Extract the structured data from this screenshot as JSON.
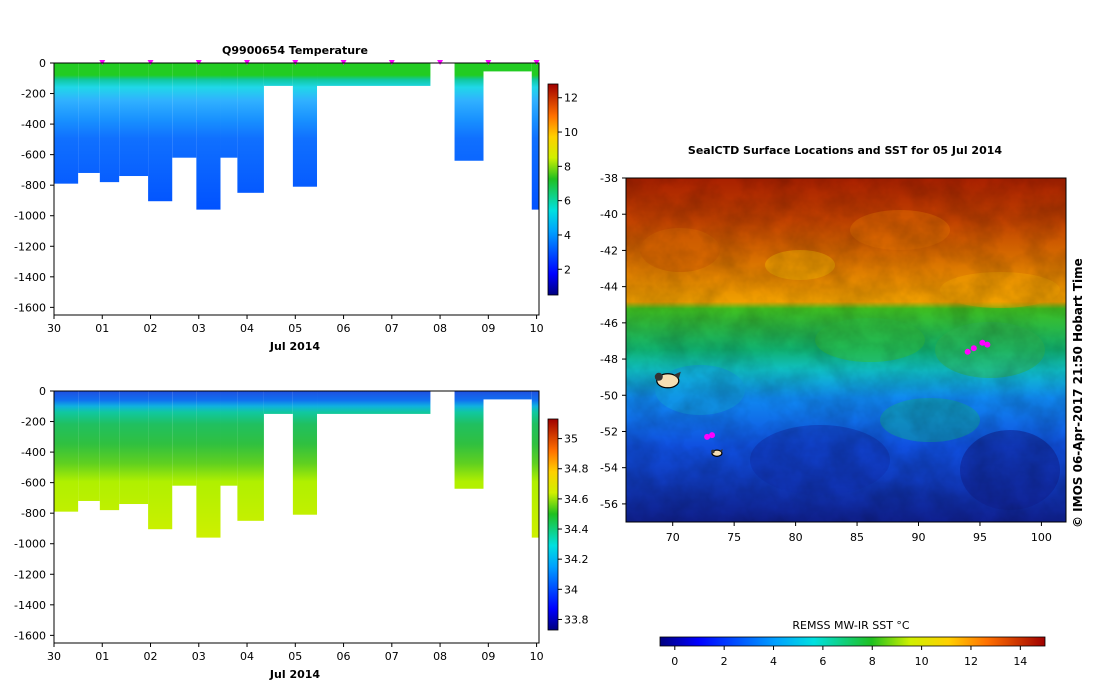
{
  "chart_data": [
    {
      "type": "heatmap",
      "title": "Q9900654  Temperature",
      "xlabel": "Jul 2014",
      "ylabel": "",
      "x_ticks": [
        "30",
        "01",
        "02",
        "03",
        "04",
        "05",
        "06",
        "07",
        "08",
        "09",
        "10"
      ],
      "y_ticks": [
        0,
        -200,
        -400,
        -600,
        -800,
        -1000,
        -1200,
        -1400,
        -1600
      ],
      "ylim": [
        -1650,
        0
      ],
      "colorbar": {
        "ticks": [
          2,
          4,
          6,
          8,
          10,
          12
        ],
        "range": [
          0.5,
          12.8
        ]
      },
      "profiles": [
        {
          "start": 0.0,
          "end": 0.5,
          "depth": 790
        },
        {
          "start": 0.5,
          "end": 0.95,
          "depth": 720
        },
        {
          "start": 0.95,
          "end": 1.35,
          "depth": 780
        },
        {
          "start": 1.35,
          "end": 1.95,
          "depth": 740
        },
        {
          "start": 1.95,
          "end": 2.45,
          "depth": 905
        },
        {
          "start": 2.45,
          "end": 2.95,
          "depth": 620
        },
        {
          "start": 2.95,
          "end": 3.45,
          "depth": 960
        },
        {
          "start": 3.45,
          "end": 3.8,
          "depth": 620
        },
        {
          "start": 3.8,
          "end": 4.35,
          "depth": 850
        },
        {
          "start": 4.35,
          "end": 4.95,
          "depth": 150
        },
        {
          "start": 4.95,
          "end": 5.45,
          "depth": 810
        },
        {
          "start": 5.45,
          "end": 7.8,
          "depth": 150
        },
        {
          "start": 8.3,
          "end": 8.9,
          "depth": 640
        },
        {
          "start": 8.9,
          "end": 9.9,
          "depth": 55
        },
        {
          "start": 9.9,
          "end": 10.05,
          "depth": 960
        }
      ],
      "surface_markers": [
        1.0,
        2.0,
        3.0,
        4.0,
        5.0,
        6.0,
        7.0,
        8.0,
        9.0,
        10.0
      ]
    },
    {
      "type": "heatmap",
      "title": "",
      "xlabel": "Jul 2014",
      "ylabel": "",
      "x_ticks": [
        "30",
        "01",
        "02",
        "03",
        "04",
        "05",
        "06",
        "07",
        "08",
        "09",
        "10"
      ],
      "y_ticks": [
        0,
        -200,
        -400,
        -600,
        -800,
        -1000,
        -1200,
        -1400,
        -1600
      ],
      "ylim": [
        -1650,
        0
      ],
      "colorbar": {
        "ticks": [
          33.8,
          34,
          34.2,
          34.4,
          34.6,
          34.8,
          35
        ],
        "range": [
          33.73,
          35.13
        ]
      },
      "profiles": [
        {
          "start": 0.0,
          "end": 0.5,
          "depth": 790
        },
        {
          "start": 0.5,
          "end": 0.95,
          "depth": 720
        },
        {
          "start": 0.95,
          "end": 1.35,
          "depth": 780
        },
        {
          "start": 1.35,
          "end": 1.95,
          "depth": 740
        },
        {
          "start": 1.95,
          "end": 2.45,
          "depth": 905
        },
        {
          "start": 2.45,
          "end": 2.95,
          "depth": 620
        },
        {
          "start": 2.95,
          "end": 3.45,
          "depth": 960
        },
        {
          "start": 3.45,
          "end": 3.8,
          "depth": 620
        },
        {
          "start": 3.8,
          "end": 4.35,
          "depth": 850
        },
        {
          "start": 4.35,
          "end": 4.95,
          "depth": 150
        },
        {
          "start": 4.95,
          "end": 5.45,
          "depth": 810
        },
        {
          "start": 5.45,
          "end": 7.8,
          "depth": 150
        },
        {
          "start": 8.3,
          "end": 8.9,
          "depth": 640
        },
        {
          "start": 8.9,
          "end": 9.9,
          "depth": 55
        },
        {
          "start": 9.9,
          "end": 10.05,
          "depth": 960
        }
      ]
    },
    {
      "type": "heatmap",
      "title": "SealCTD Surface Locations and SST for 05 Jul 2014",
      "xlabel": "",
      "ylabel": "",
      "x_ticks": [
        70,
        75,
        80,
        85,
        90,
        95,
        100
      ],
      "y_ticks": [
        -38,
        -40,
        -42,
        -44,
        -46,
        -48,
        -50,
        -52,
        -54,
        -56
      ],
      "xlim": [
        66.2,
        102.0
      ],
      "ylim": [
        -57.0,
        -38.0
      ],
      "colorbar": {
        "label": "REMSS MW-IR SST °C",
        "ticks": [
          0,
          2,
          4,
          6,
          8,
          10,
          12,
          14
        ],
        "range": [
          -0.6,
          15.0
        ]
      },
      "seal_locations": [
        {
          "lon": 94.0,
          "lat": -47.6
        },
        {
          "lon": 94.5,
          "lat": -47.4
        },
        {
          "lon": 95.2,
          "lat": -47.1
        },
        {
          "lon": 95.6,
          "lat": -47.2
        },
        {
          "lon": 72.8,
          "lat": -52.3
        },
        {
          "lon": 73.2,
          "lat": -52.2
        }
      ],
      "seal_icons": [
        {
          "lon": 69.6,
          "lat": -49.2
        },
        {
          "lon": 73.6,
          "lat": -53.2
        }
      ],
      "credit": "© IMOS 06-Apr-2017 21:50 Hobart Time"
    }
  ],
  "colors": {
    "marker": "#ff00ff",
    "background": "#ffffff"
  }
}
